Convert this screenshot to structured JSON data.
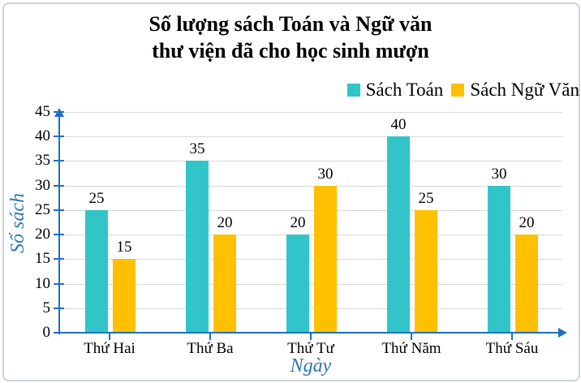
{
  "chart_data": {
    "type": "bar",
    "title": "Số lượng sách Toán và Ngữ văn\nthư viện đã cho học sinh mượn",
    "categories": [
      "Thứ Hai",
      "Thứ Ba",
      "Thứ Tư",
      "Thứ Năm",
      "Thứ Sáu"
    ],
    "series": [
      {
        "name": "Sách Toán",
        "color": "#31C5C9",
        "values": [
          25,
          35,
          20,
          40,
          30
        ]
      },
      {
        "name": "Sách Ngữ Văn",
        "color": "#FFC000",
        "values": [
          15,
          20,
          30,
          25,
          20
        ]
      }
    ],
    "xlabel": "Ngày",
    "ylabel": "Số sách",
    "ylim": [
      0,
      45
    ],
    "ytick_step": 5,
    "grid": true,
    "legend_position": "top-right",
    "colors": {
      "axis": "#1c70c4",
      "gridline": "#d9d9d9",
      "axis_title_text": "#2e75b6",
      "title_text": "#000000",
      "tick_label_text": "#000000",
      "frame_border": "#ccd3d9",
      "background": "#ffffff"
    }
  }
}
